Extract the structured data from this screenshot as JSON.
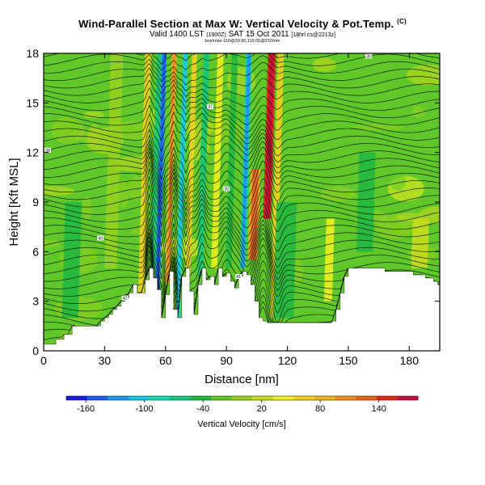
{
  "chart_data": {
    "type": "heatmap",
    "title": "Wind-Parallel Section at Max W: Vertical Velocity & Pot.Temp.",
    "title_suffix": "(C)",
    "subtitle": "Valid 1400 LST",
    "subtitle_time_code": "(1900Z)",
    "subtitle_date": "SAT 15 Oct 2011",
    "subtitle_forecast": "[18hrl cs@2213z]",
    "meta_line": "box/max-110@39.90,119.05@210/nm",
    "xlabel": "Distance [nm]",
    "ylabel": "Height [Kft MSL]",
    "xlim": [
      0,
      195
    ],
    "ylim": [
      0,
      18
    ],
    "x_ticks": [
      0,
      30,
      60,
      90,
      120,
      150,
      180
    ],
    "y_ticks": [
      0,
      3,
      6,
      9,
      12,
      15,
      18
    ],
    "colorbar": {
      "label": "Vertical Velocity [cm/s]",
      "tick_labels": [
        "-160",
        "-100",
        "-40",
        "20",
        "80",
        "140"
      ],
      "tick_values": [
        -160,
        -100,
        -40,
        20,
        80,
        140
      ],
      "range": [
        -180,
        180
      ],
      "colors": [
        "#1a1ae6",
        "#1e5ef0",
        "#1e96f0",
        "#18c8e8",
        "#14d8b0",
        "#12c878",
        "#20b840",
        "#60c828",
        "#96d01e",
        "#c8dc1e",
        "#f0f01e",
        "#f0d21e",
        "#f0b41e",
        "#f08c1e",
        "#e8641e",
        "#e02814",
        "#c8103c"
      ]
    },
    "terrain": {
      "x": [
        0,
        2,
        4,
        6,
        8,
        10,
        12,
        14,
        16,
        18,
        20,
        22,
        24,
        26,
        28,
        30,
        32,
        34,
        36,
        38,
        40,
        42,
        44,
        46,
        48,
        50,
        52,
        54,
        56,
        58,
        60,
        62,
        64,
        66,
        68,
        70,
        72,
        74,
        76,
        78,
        80,
        82,
        84,
        86,
        88,
        90,
        92,
        94,
        96,
        98,
        100,
        102,
        104,
        106,
        108,
        110,
        112,
        114,
        116,
        118,
        120,
        122,
        124,
        126,
        128,
        130,
        132,
        134,
        136,
        138,
        140,
        142,
        144,
        146,
        148,
        150,
        152,
        154,
        156,
        158,
        160,
        162,
        164,
        166,
        168,
        170,
        172,
        174,
        176,
        178,
        180,
        182,
        184,
        186,
        188,
        190,
        192,
        194,
        195
      ],
      "height": [
        0.4,
        0.4,
        0.4,
        0.7,
        0.7,
        1.0,
        1.0,
        1.5,
        1.5,
        1.5,
        1.5,
        1.5,
        1.5,
        1.5,
        1.8,
        2.0,
        2.2,
        2.5,
        2.7,
        3.0,
        3.2,
        3.5,
        4.0,
        3.5,
        3.5,
        4.3,
        5.0,
        4.4,
        3.7,
        2.0,
        3.4,
        4.8,
        2.5,
        2.0,
        4.5,
        5.0,
        3.6,
        2.2,
        4.0,
        5.0,
        4.3,
        4.5,
        4.0,
        5.0,
        4.5,
        4.7,
        4.2,
        3.8,
        4.5,
        4.8,
        4.6,
        4.0,
        3.0,
        2.0,
        1.8,
        1.7,
        1.7,
        1.7,
        1.7,
        1.7,
        1.7,
        1.7,
        1.7,
        1.7,
        1.7,
        1.7,
        1.7,
        1.7,
        1.7,
        1.7,
        1.7,
        1.8,
        2.5,
        3.5,
        4.5,
        5.0,
        5.0,
        5.0,
        5.0,
        5.0,
        5.0,
        5.0,
        5.0,
        5.0,
        4.8,
        4.8,
        4.8,
        4.8,
        4.8,
        4.8,
        4.8,
        4.6,
        4.6,
        4.6,
        4.4,
        4.4,
        4.2,
        4.0,
        4.0
      ]
    },
    "updrafts": [
      {
        "x": 13,
        "y_bottom": 2,
        "y_top": 9,
        "width": 8,
        "value": -40
      },
      {
        "x": 33,
        "y_bottom": 5,
        "y_top": 18,
        "width": 6,
        "value": 0
      },
      {
        "x": 48,
        "y_bottom": 3,
        "y_top": 18,
        "width": 3,
        "value": 60
      },
      {
        "x": 54,
        "y_bottom": 5,
        "y_top": 18,
        "width": 3,
        "value": -60
      },
      {
        "x": 56,
        "y_bottom": 3,
        "y_top": 18,
        "width": 2.5,
        "value": -120
      },
      {
        "x": 61,
        "y_bottom": 4,
        "y_top": 18,
        "width": 2.5,
        "value": 80
      },
      {
        "x": 66,
        "y_bottom": 2,
        "y_top": 18,
        "width": 2.5,
        "value": -80
      },
      {
        "x": 71,
        "y_bottom": 2.5,
        "y_top": 18,
        "width": 2.5,
        "value": 60
      },
      {
        "x": 77,
        "y_bottom": 4,
        "y_top": 18,
        "width": 3,
        "value": -60
      },
      {
        "x": 84,
        "y_bottom": 5,
        "y_top": 18,
        "width": 3,
        "value": 40
      },
      {
        "x": 91,
        "y_bottom": 5,
        "y_top": 18,
        "width": 3,
        "value": -40
      },
      {
        "x": 98,
        "y_bottom": 5,
        "y_top": 18,
        "width": 3,
        "value": -90
      },
      {
        "x": 103,
        "y_bottom": 5.5,
        "y_top": 11,
        "width": 5,
        "value": 90
      },
      {
        "x": 110,
        "y_bottom": 8,
        "y_top": 18,
        "width": 4,
        "value": 150
      },
      {
        "x": 113,
        "y_bottom": 2,
        "y_top": 18,
        "width": 3,
        "value": 60
      },
      {
        "x": 118,
        "y_bottom": 2,
        "y_top": 9,
        "width": 10,
        "value": -40
      },
      {
        "x": 140,
        "y_bottom": 3,
        "y_top": 8,
        "width": 4,
        "value": 40
      },
      {
        "x": 158,
        "y_bottom": 6,
        "y_top": 12,
        "width": 8,
        "value": -40
      },
      {
        "x": 185,
        "y_bottom": 5,
        "y_top": 8,
        "width": 8,
        "value": 30
      }
    ],
    "isentropes": {
      "label_values": [
        "42",
        "41",
        "40",
        "39",
        "38",
        "37",
        "36",
        "35",
        "34",
        "33",
        "32",
        "31"
      ]
    }
  }
}
